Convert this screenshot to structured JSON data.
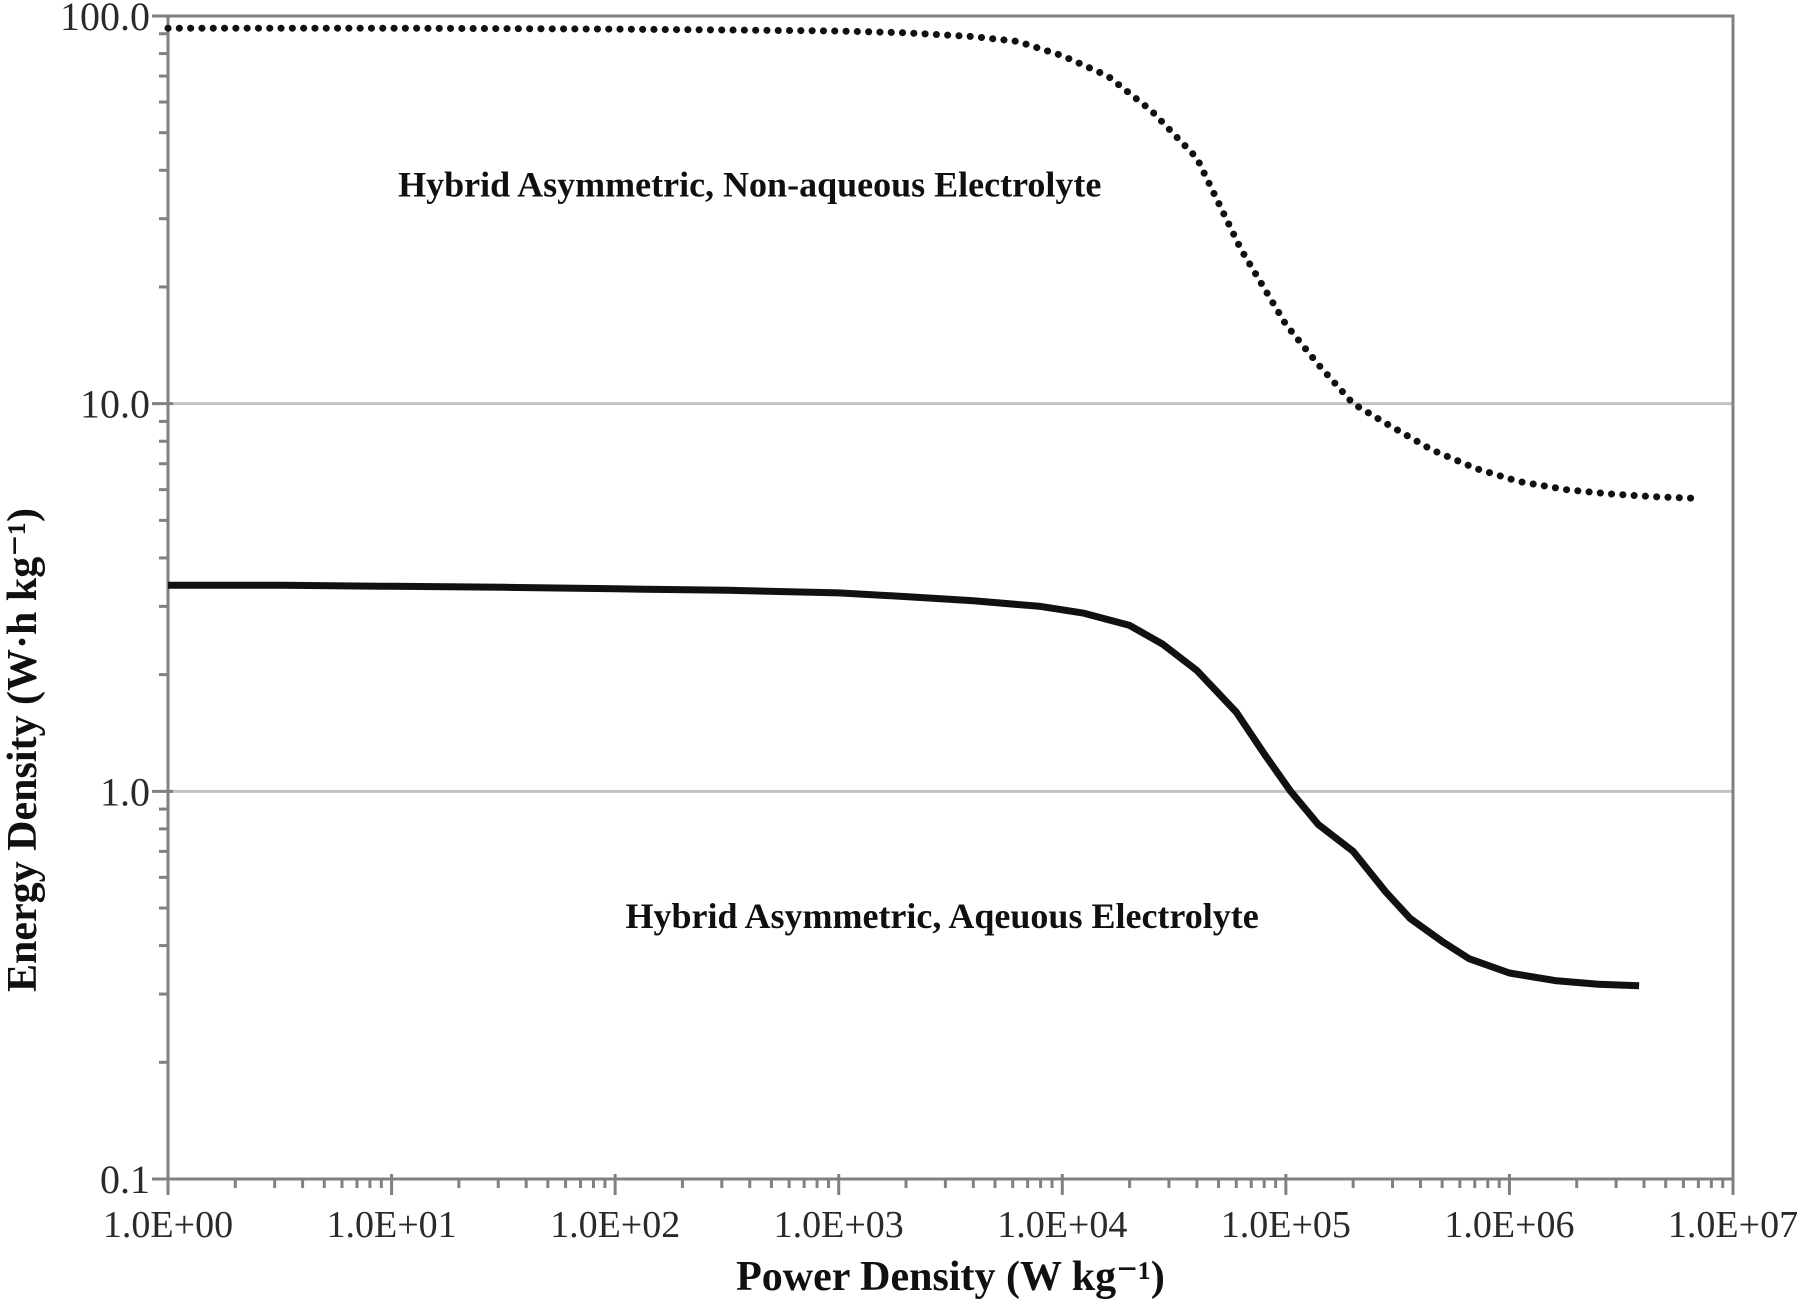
{
  "chart_data": {
    "type": "line",
    "xlabel": "Power Density (W kg⁻¹)",
    "ylabel": "Energy Density (W·h kg⁻¹)",
    "x_scale": "log",
    "y_scale": "log",
    "xlim": [
      1,
      10000000
    ],
    "ylim": [
      0.1,
      100
    ],
    "grid": "horizontal-major-only",
    "gridline_y_values": [
      10,
      1
    ],
    "legend_position": "none",
    "colors": {
      "curve": "#111111",
      "axis_border": "#808080",
      "gridline": "#c3c3c3",
      "tick_text": "#2a2a2a",
      "background": "#ffffff"
    },
    "x_ticks": [
      {
        "value": 1,
        "label": "1.0E+00"
      },
      {
        "value": 10,
        "label": "1.0E+01"
      },
      {
        "value": 100,
        "label": "1.0E+02"
      },
      {
        "value": 1000,
        "label": "1.0E+03"
      },
      {
        "value": 10000,
        "label": "1.0E+04"
      },
      {
        "value": 100000,
        "label": "1.0E+05"
      },
      {
        "value": 1000000,
        "label": "1.0E+06"
      },
      {
        "value": 10000000,
        "label": "1.0E+07"
      }
    ],
    "y_ticks": [
      {
        "value": 100,
        "label": "100.0"
      },
      {
        "value": 10,
        "label": "10.0"
      },
      {
        "value": 1,
        "label": "1.0"
      },
      {
        "value": 0.1,
        "label": "0.1"
      }
    ],
    "series": [
      {
        "name": "Hybrid Asymmetric, Non-aqueous Electrolyte",
        "style": "dotted",
        "points": [
          [
            1,
            93
          ],
          [
            3.2,
            93
          ],
          [
            10,
            93
          ],
          [
            32,
            92.8
          ],
          [
            100,
            92.5
          ],
          [
            320,
            92
          ],
          [
            1000,
            91.5
          ],
          [
            2000,
            90.5
          ],
          [
            4000,
            88.5
          ],
          [
            6300,
            86
          ],
          [
            10000,
            79
          ],
          [
            16000,
            70
          ],
          [
            25000,
            57
          ],
          [
            40000,
            43
          ],
          [
            63000,
            25
          ],
          [
            100000,
            16
          ],
          [
            140000,
            12.6
          ],
          [
            200000,
            10
          ],
          [
            280000,
            8.9
          ],
          [
            450000,
            7.6
          ],
          [
            710000,
            6.8
          ],
          [
            1100000,
            6.3
          ],
          [
            1800000,
            6.0
          ],
          [
            2800000,
            5.85
          ],
          [
            4500000,
            5.75
          ],
          [
            6800000,
            5.7
          ]
        ]
      },
      {
        "name": "Hybrid Asymmetric, Aqeuous Electrolyte",
        "style": "solid",
        "points": [
          [
            1,
            3.4
          ],
          [
            3.2,
            3.4
          ],
          [
            10,
            3.38
          ],
          [
            32,
            3.36
          ],
          [
            100,
            3.33
          ],
          [
            320,
            3.3
          ],
          [
            1000,
            3.25
          ],
          [
            2000,
            3.18
          ],
          [
            4000,
            3.1
          ],
          [
            8000,
            3.0
          ],
          [
            12500,
            2.88
          ],
          [
            20000,
            2.68
          ],
          [
            28000,
            2.4
          ],
          [
            40000,
            2.05
          ],
          [
            60000,
            1.6
          ],
          [
            80000,
            1.25
          ],
          [
            105000,
            1.0
          ],
          [
            140000,
            0.82
          ],
          [
            200000,
            0.7
          ],
          [
            280000,
            0.55
          ],
          [
            360000,
            0.47
          ],
          [
            500000,
            0.41
          ],
          [
            660000,
            0.37
          ],
          [
            1000000,
            0.34
          ],
          [
            1600000,
            0.325
          ],
          [
            2500000,
            0.318
          ],
          [
            3800000,
            0.315
          ]
        ]
      }
    ],
    "annotations": [
      {
        "text": "Hybrid Asymmetric, Non-aqueous Electrolyte",
        "p": 400,
        "e": 37
      },
      {
        "text": "Hybrid Asymmetric, Aqeuous Electrolyte",
        "p": 2900,
        "e": 0.48
      }
    ]
  }
}
